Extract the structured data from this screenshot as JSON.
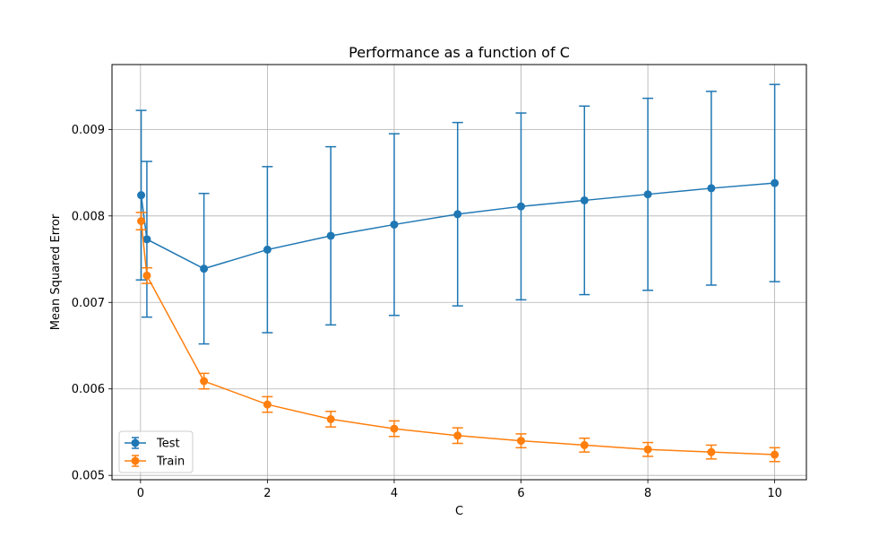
{
  "chart_data": {
    "type": "line",
    "title": "Performance as a function of C",
    "xlabel": "C",
    "ylabel": "Mean Squared Error",
    "xlim": [
      -0.45,
      10.5
    ],
    "ylim": [
      0.00495,
      0.00975
    ],
    "x_ticks": [
      0,
      2,
      4,
      6,
      8,
      10
    ],
    "x_tick_labels": [
      "0",
      "2",
      "4",
      "6",
      "8",
      "10"
    ],
    "y_ticks": [
      0.005,
      0.006,
      0.007,
      0.008,
      0.009
    ],
    "y_tick_labels": [
      "0.005",
      "0.006",
      "0.007",
      "0.008",
      "0.009"
    ],
    "grid": true,
    "legend_position": "lower-left",
    "error_bars": true,
    "x": [
      0.01,
      0.1,
      1,
      2,
      3,
      4,
      5,
      6,
      7,
      8,
      9,
      10
    ],
    "series": [
      {
        "name": "Test",
        "color": "#1f77b4",
        "values": [
          0.00824,
          0.00773,
          0.00739,
          0.00761,
          0.00777,
          0.0079,
          0.00802,
          0.00811,
          0.00818,
          0.00825,
          0.00832,
          0.00838
        ],
        "errors": [
          0.00098,
          0.0009,
          0.00087,
          0.00096,
          0.00103,
          0.00105,
          0.00106,
          0.00108,
          0.00109,
          0.00111,
          0.00112,
          0.00114
        ]
      },
      {
        "name": "Train",
        "color": "#ff7f0e",
        "values": [
          0.00794,
          0.00731,
          0.00609,
          0.00582,
          0.00565,
          0.00554,
          0.00546,
          0.0054,
          0.00535,
          0.0053,
          0.00527,
          0.00524
        ],
        "errors": [
          0.0001,
          9e-05,
          9e-05,
          9e-05,
          9e-05,
          9e-05,
          9e-05,
          8e-05,
          8e-05,
          8e-05,
          8e-05,
          8e-05
        ]
      }
    ]
  }
}
